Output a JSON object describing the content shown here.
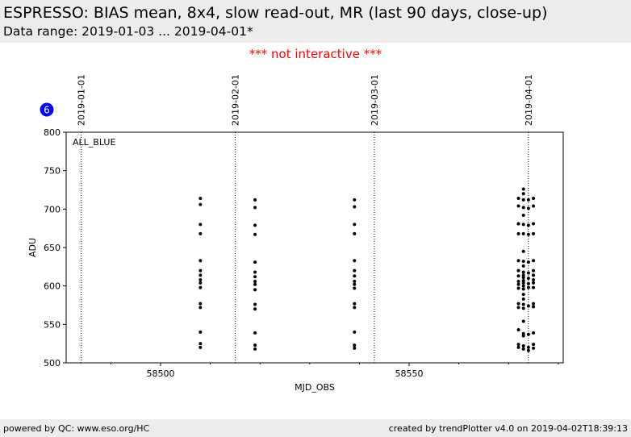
{
  "header": {
    "title": "ESPRESSO: BIAS mean, 8x4, slow read-out, MR (last 90 days, close-up)",
    "subtitle": "Data range: 2019-01-03 ... 2019-04-01*"
  },
  "notice": "*** not interactive ***",
  "badge": "6",
  "footer": {
    "left": "powered by QC: www.eso.org/HC",
    "right": "created by trendPlotter v4.0 on 2019-04-02T18:39:13"
  },
  "colors": {
    "badge": "#0000ee",
    "notice": "#ff0000",
    "points": "#000000",
    "band": "#ececec"
  },
  "chart_data": {
    "type": "scatter",
    "xlabel": "MJD_OBS",
    "ylabel": "ADU",
    "xlim": [
      58481,
      58581
    ],
    "ylim": [
      500,
      800
    ],
    "xticks": [
      58500,
      58550
    ],
    "yticks": [
      500,
      550,
      600,
      650,
      700,
      750,
      800
    ],
    "panel_label": "ALL_BLUE",
    "date_markers": [
      {
        "x": 58484,
        "label": "2019-01-01"
      },
      {
        "x": 58515,
        "label": "2019-02-01"
      },
      {
        "x": 58543,
        "label": "2019-03-01"
      },
      {
        "x": 58574,
        "label": "2019-04-01"
      }
    ],
    "series": [
      {
        "points": [
          [
            58508,
            714
          ],
          [
            58508,
            706
          ],
          [
            58508,
            680
          ],
          [
            58508,
            668
          ],
          [
            58508,
            633
          ],
          [
            58508,
            620
          ],
          [
            58508,
            614
          ],
          [
            58508,
            608
          ],
          [
            58508,
            604
          ],
          [
            58508,
            598
          ],
          [
            58508,
            577
          ],
          [
            58508,
            572
          ],
          [
            58508,
            540
          ],
          [
            58508,
            525
          ],
          [
            58508,
            520
          ],
          [
            58519,
            712
          ],
          [
            58519,
            702
          ],
          [
            58519,
            679
          ],
          [
            58519,
            667
          ],
          [
            58519,
            631
          ],
          [
            58519,
            618
          ],
          [
            58519,
            612
          ],
          [
            58519,
            606
          ],
          [
            58519,
            602
          ],
          [
            58519,
            595
          ],
          [
            58519,
            576
          ],
          [
            58519,
            570
          ],
          [
            58519,
            539
          ],
          [
            58519,
            523
          ],
          [
            58519,
            518
          ],
          [
            58539,
            712
          ],
          [
            58539,
            703
          ],
          [
            58539,
            680
          ],
          [
            58539,
            668
          ],
          [
            58539,
            633
          ],
          [
            58539,
            620
          ],
          [
            58539,
            613
          ],
          [
            58539,
            606
          ],
          [
            58539,
            602
          ],
          [
            58539,
            597
          ],
          [
            58539,
            577
          ],
          [
            58539,
            572
          ],
          [
            58539,
            540
          ],
          [
            58539,
            523
          ],
          [
            58539,
            519
          ],
          [
            58572,
            714
          ],
          [
            58572,
            704
          ],
          [
            58572,
            681
          ],
          [
            58572,
            668
          ],
          [
            58572,
            633
          ],
          [
            58572,
            620
          ],
          [
            58572,
            613
          ],
          [
            58572,
            606
          ],
          [
            58572,
            602
          ],
          [
            58572,
            597
          ],
          [
            58572,
            577
          ],
          [
            58572,
            572
          ],
          [
            58572,
            543
          ],
          [
            58572,
            524
          ],
          [
            58572,
            520
          ],
          [
            58573,
            726
          ],
          [
            58573,
            720
          ],
          [
            58573,
            712
          ],
          [
            58573,
            702
          ],
          [
            58573,
            692
          ],
          [
            58573,
            680
          ],
          [
            58573,
            668
          ],
          [
            58573,
            645
          ],
          [
            58573,
            632
          ],
          [
            58573,
            626
          ],
          [
            58573,
            618
          ],
          [
            58573,
            614
          ],
          [
            58573,
            611
          ],
          [
            58573,
            607
          ],
          [
            58573,
            604
          ],
          [
            58573,
            600
          ],
          [
            58573,
            596
          ],
          [
            58573,
            589
          ],
          [
            58573,
            583
          ],
          [
            58573,
            576
          ],
          [
            58573,
            571
          ],
          [
            58573,
            554
          ],
          [
            58573,
            538
          ],
          [
            58573,
            535
          ],
          [
            58573,
            522
          ],
          [
            58573,
            518
          ],
          [
            58574,
            712
          ],
          [
            58574,
            701
          ],
          [
            58574,
            679
          ],
          [
            58574,
            667
          ],
          [
            58574,
            631
          ],
          [
            58574,
            617
          ],
          [
            58574,
            610
          ],
          [
            58574,
            603
          ],
          [
            58574,
            598
          ],
          [
            58574,
            574
          ],
          [
            58574,
            537
          ],
          [
            58574,
            520
          ],
          [
            58574,
            516
          ],
          [
            58575,
            714
          ],
          [
            58575,
            704
          ],
          [
            58575,
            681
          ],
          [
            58575,
            668
          ],
          [
            58575,
            633
          ],
          [
            58575,
            620
          ],
          [
            58575,
            614
          ],
          [
            58575,
            608
          ],
          [
            58575,
            604
          ],
          [
            58575,
            598
          ],
          [
            58575,
            577
          ],
          [
            58575,
            573
          ],
          [
            58575,
            539
          ],
          [
            58575,
            524
          ],
          [
            58575,
            519
          ]
        ]
      }
    ]
  }
}
